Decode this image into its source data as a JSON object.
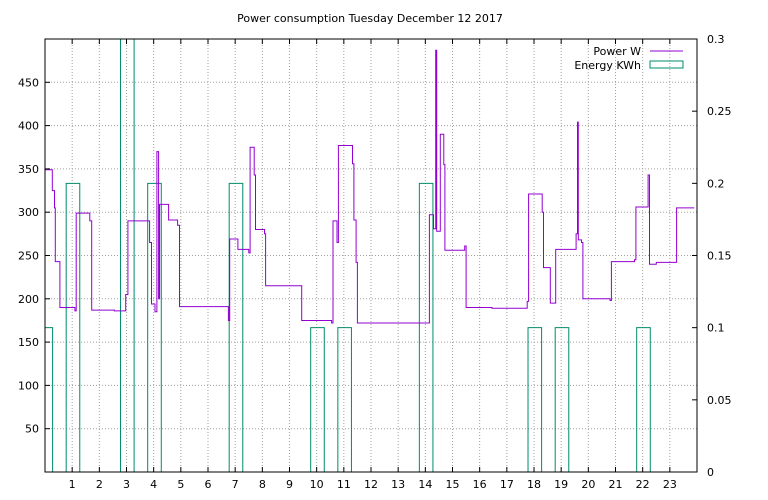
{
  "chart_data": {
    "type": "line",
    "title": "Power consumption Tuesday December 12 2017",
    "xlabel": "",
    "ylabel": "",
    "y2label": "",
    "x_range": [
      0,
      24
    ],
    "y_range": [
      0,
      500
    ],
    "y2_range": [
      0,
      0.3
    ],
    "grid": true,
    "legend_position": "top-right",
    "x_ticks": [
      1,
      2,
      3,
      4,
      5,
      6,
      7,
      8,
      9,
      10,
      11,
      12,
      13,
      14,
      15,
      16,
      17,
      18,
      19,
      20,
      21,
      22,
      23
    ],
    "y_ticks": [
      50,
      100,
      150,
      200,
      250,
      300,
      350,
      400,
      450
    ],
    "y2_ticks": [
      0,
      0.05,
      0.1,
      0.15,
      0.2,
      0.25,
      0.3
    ],
    "series": [
      {
        "name": "Power W",
        "color": "#9400d3",
        "axis": "left",
        "style": "step",
        "points": [
          [
            0.0,
            349
          ],
          [
            0.27,
            349
          ],
          [
            0.27,
            325
          ],
          [
            0.35,
            325
          ],
          [
            0.35,
            305
          ],
          [
            0.38,
            305
          ],
          [
            0.38,
            243
          ],
          [
            0.55,
            243
          ],
          [
            0.55,
            190
          ],
          [
            1.1,
            190
          ],
          [
            1.1,
            186
          ],
          [
            1.15,
            186
          ],
          [
            1.15,
            299
          ],
          [
            1.65,
            299
          ],
          [
            1.65,
            290
          ],
          [
            1.72,
            290
          ],
          [
            1.72,
            187
          ],
          [
            2.55,
            187
          ],
          [
            2.55,
            186
          ],
          [
            2.97,
            186
          ],
          [
            2.97,
            205
          ],
          [
            3.05,
            205
          ],
          [
            3.05,
            290
          ],
          [
            3.85,
            290
          ],
          [
            3.85,
            265
          ],
          [
            3.92,
            265
          ],
          [
            3.92,
            194
          ],
          [
            4.05,
            194
          ],
          [
            4.05,
            185
          ],
          [
            4.12,
            185
          ],
          [
            4.12,
            370
          ],
          [
            4.18,
            370
          ],
          [
            4.18,
            200
          ],
          [
            4.22,
            200
          ],
          [
            4.22,
            309
          ],
          [
            4.55,
            309
          ],
          [
            4.55,
            291
          ],
          [
            4.88,
            291
          ],
          [
            4.88,
            285
          ],
          [
            4.95,
            285
          ],
          [
            4.95,
            191
          ],
          [
            6.75,
            191
          ],
          [
            6.75,
            175
          ],
          [
            6.8,
            175
          ],
          [
            6.8,
            269
          ],
          [
            7.1,
            269
          ],
          [
            7.1,
            257
          ],
          [
            7.5,
            257
          ],
          [
            7.5,
            253
          ],
          [
            7.55,
            253
          ],
          [
            7.55,
            375
          ],
          [
            7.7,
            375
          ],
          [
            7.7,
            343
          ],
          [
            7.75,
            343
          ],
          [
            7.75,
            280
          ],
          [
            8.08,
            280
          ],
          [
            8.08,
            275
          ],
          [
            8.12,
            275
          ],
          [
            8.12,
            215
          ],
          [
            9.45,
            215
          ],
          [
            9.45,
            175
          ],
          [
            10.55,
            175
          ],
          [
            10.55,
            172
          ],
          [
            10.6,
            172
          ],
          [
            10.6,
            290
          ],
          [
            10.75,
            290
          ],
          [
            10.75,
            265
          ],
          [
            10.8,
            265
          ],
          [
            10.8,
            377
          ],
          [
            11.32,
            377
          ],
          [
            11.32,
            356
          ],
          [
            11.37,
            356
          ],
          [
            11.37,
            291
          ],
          [
            11.45,
            291
          ],
          [
            11.45,
            242
          ],
          [
            11.5,
            242
          ],
          [
            11.5,
            172
          ],
          [
            14.15,
            172
          ],
          [
            14.15,
            297
          ],
          [
            14.3,
            297
          ],
          [
            14.3,
            281
          ],
          [
            14.38,
            281
          ],
          [
            14.38,
            487
          ],
          [
            14.42,
            487
          ],
          [
            14.42,
            278
          ],
          [
            14.55,
            278
          ],
          [
            14.55,
            390
          ],
          [
            14.68,
            390
          ],
          [
            14.68,
            355
          ],
          [
            14.72,
            355
          ],
          [
            14.72,
            256
          ],
          [
            15.45,
            256
          ],
          [
            15.45,
            261
          ],
          [
            15.5,
            261
          ],
          [
            15.5,
            190
          ],
          [
            16.45,
            190
          ],
          [
            16.45,
            189
          ],
          [
            17.75,
            189
          ],
          [
            17.75,
            197
          ],
          [
            17.8,
            197
          ],
          [
            17.8,
            321
          ],
          [
            18.3,
            321
          ],
          [
            18.3,
            300
          ],
          [
            18.35,
            300
          ],
          [
            18.35,
            236
          ],
          [
            18.6,
            236
          ],
          [
            18.6,
            195
          ],
          [
            18.8,
            195
          ],
          [
            18.8,
            257
          ],
          [
            19.55,
            257
          ],
          [
            19.55,
            275
          ],
          [
            19.6,
            275
          ],
          [
            19.6,
            404
          ],
          [
            19.63,
            404
          ],
          [
            19.63,
            268
          ],
          [
            19.75,
            268
          ],
          [
            19.75,
            265
          ],
          [
            19.8,
            265
          ],
          [
            19.8,
            200
          ],
          [
            20.8,
            200
          ],
          [
            20.8,
            198
          ],
          [
            20.85,
            198
          ],
          [
            20.85,
            243
          ],
          [
            21.7,
            243
          ],
          [
            21.7,
            245
          ],
          [
            21.75,
            245
          ],
          [
            21.75,
            306
          ],
          [
            22.2,
            306
          ],
          [
            22.2,
            343
          ],
          [
            22.25,
            343
          ],
          [
            22.25,
            240
          ],
          [
            22.5,
            240
          ],
          [
            22.5,
            242
          ],
          [
            23.25,
            242
          ],
          [
            23.25,
            305
          ],
          [
            23.9,
            305
          ]
        ]
      },
      {
        "name": "Energy KWh",
        "color": "#008b6b",
        "axis": "right",
        "style": "boxes",
        "bars": [
          {
            "x0": 0.0,
            "x1": 0.28,
            "value": 0.1
          },
          {
            "x0": 0.78,
            "x1": 1.28,
            "value": 0.2
          },
          {
            "x0": 2.78,
            "x1": 3.28,
            "value": 0.3
          },
          {
            "x0": 3.78,
            "x1": 4.28,
            "value": 0.2
          },
          {
            "x0": 6.78,
            "x1": 7.28,
            "value": 0.2
          },
          {
            "x0": 9.78,
            "x1": 10.28,
            "value": 0.1
          },
          {
            "x0": 10.78,
            "x1": 11.28,
            "value": 0.1
          },
          {
            "x0": 13.78,
            "x1": 14.28,
            "value": 0.2
          },
          {
            "x0": 17.78,
            "x1": 18.28,
            "value": 0.1
          },
          {
            "x0": 18.78,
            "x1": 19.28,
            "value": 0.1
          },
          {
            "x0": 21.78,
            "x1": 22.28,
            "value": 0.1
          }
        ]
      }
    ]
  }
}
